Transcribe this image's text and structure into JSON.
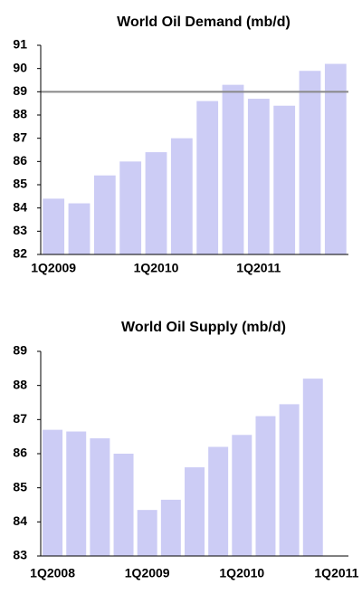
{
  "chart_data": [
    {
      "type": "bar",
      "title": "World Oil Demand (mb/d)",
      "categories": [
        "1Q2009",
        null,
        null,
        null,
        "1Q2010",
        null,
        null,
        null,
        "1Q2011",
        null,
        null,
        null
      ],
      "values": [
        84.4,
        84.2,
        85.4,
        86.0,
        86.4,
        87.0,
        88.6,
        89.3,
        88.7,
        88.4,
        89.9,
        90.2
      ],
      "color": "#ccccf5",
      "ylim": [
        82,
        91
      ],
      "yticks": [
        82,
        83,
        84,
        85,
        86,
        87,
        88,
        89,
        90,
        91
      ],
      "reference_line": 89
    },
    {
      "type": "bar",
      "title": "World Oil Supply (mb/d)",
      "categories": [
        "1Q2008",
        null,
        null,
        null,
        "1Q2009",
        null,
        null,
        null,
        "1Q2010",
        null,
        null,
        null,
        "1Q2011"
      ],
      "values": [
        86.7,
        86.65,
        86.45,
        86.0,
        84.35,
        84.65,
        85.6,
        86.2,
        86.55,
        87.1,
        87.45,
        88.2,
        null
      ],
      "color": "#ccccf5",
      "ylim": [
        83,
        89
      ],
      "yticks": [
        83,
        84,
        85,
        86,
        87,
        88,
        89
      ]
    }
  ]
}
